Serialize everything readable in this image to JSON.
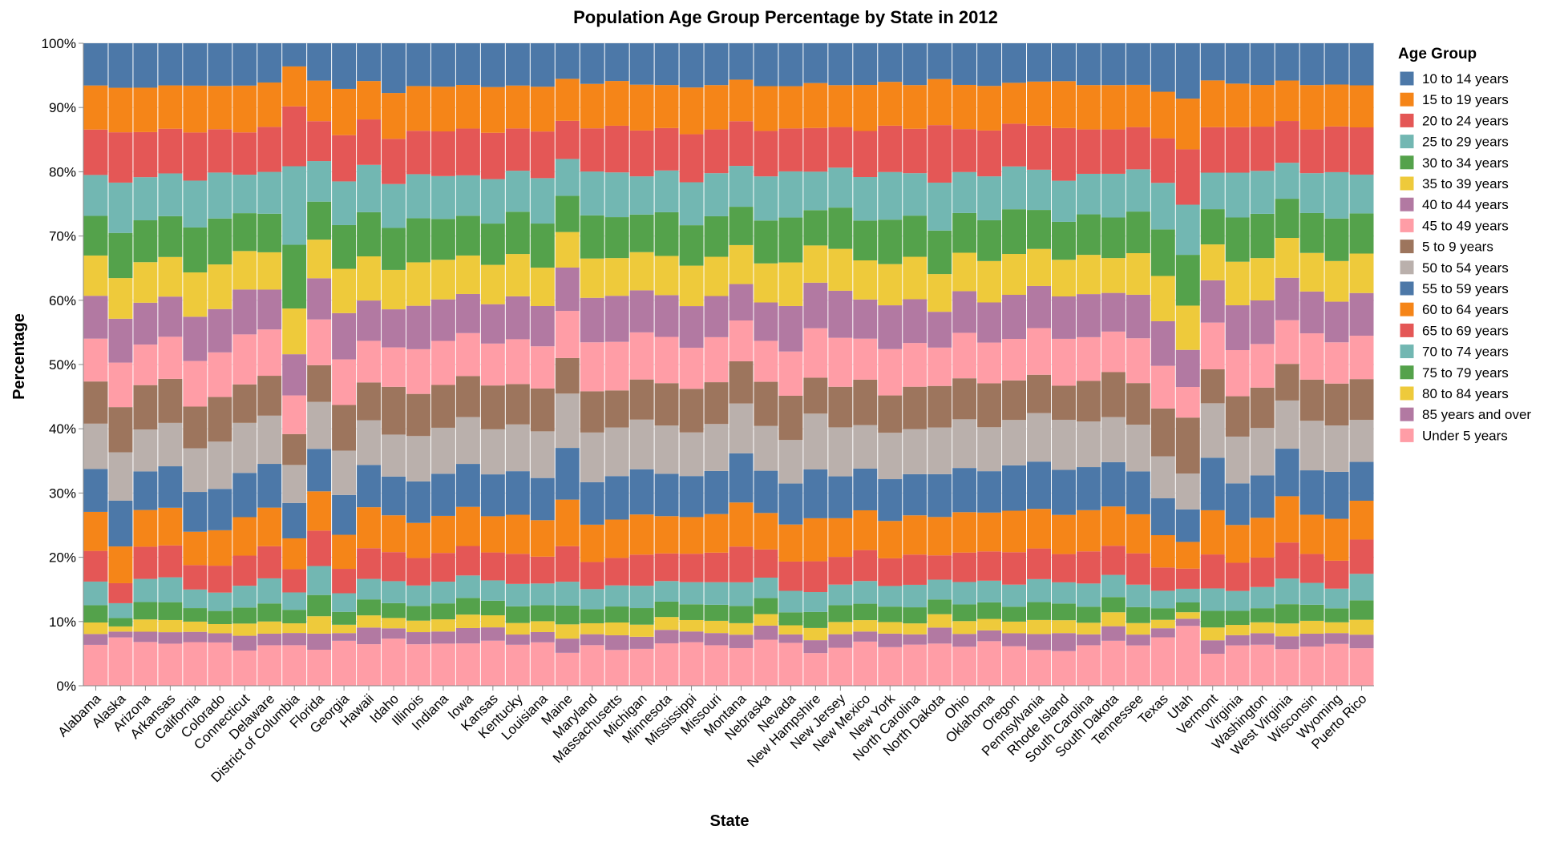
{
  "chart_data": {
    "type": "bar",
    "stacked": "normalize",
    "title": "Population Age Group Percentage by State in 2012",
    "xlabel": "State",
    "ylabel": "Percentage",
    "ylim": [
      0,
      1
    ],
    "y_ticks": [
      "0%",
      "10%",
      "20%",
      "30%",
      "40%",
      "50%",
      "60%",
      "70%",
      "80%",
      "90%",
      "100%"
    ],
    "grid": true,
    "legend": {
      "title": "Age Group",
      "position": "right"
    },
    "categories": [
      "Alabama",
      "Alaska",
      "Arizona",
      "Arkansas",
      "California",
      "Colorado",
      "Connecticut",
      "Delaware",
      "District of Columbia",
      "Florida",
      "Georgia",
      "Hawaii",
      "Idaho",
      "Illinois",
      "Indiana",
      "Iowa",
      "Kansas",
      "Kentucky",
      "Louisiana",
      "Maine",
      "Maryland",
      "Massachusetts",
      "Michigan",
      "Minnesota",
      "Mississippi",
      "Missouri",
      "Montana",
      "Nebraska",
      "Nevada",
      "New Hampshire",
      "New Jersey",
      "New Mexico",
      "New York",
      "North Carolina",
      "North Dakota",
      "Ohio",
      "Oklahoma",
      "Oregon",
      "Pennsylvania",
      "Rhode Island",
      "South Carolina",
      "South Dakota",
      "Tennessee",
      "Texas",
      "Utah",
      "Vermont",
      "Virginia",
      "Washington",
      "West Virginia",
      "Wisconsin",
      "Wyoming",
      "Puerto Rico"
    ],
    "stack_order": [
      "Under 5 years",
      "85 years and over",
      "80 to 84 years",
      "75 to 79 years",
      "70 to 74 years",
      "65 to 69 years",
      "60 to 64 years",
      "55 to 59 years",
      "50 to 54 years",
      "5 to 9 years",
      "45 to 49 years",
      "40 to 44 years",
      "35 to 39 years",
      "30 to 34 years",
      "25 to 29 years",
      "20 to 24 years",
      "15 to 19 years",
      "10 to 14 years"
    ],
    "series": [
      {
        "name": "10 to 14 years",
        "color": "#4c78a8",
        "values": [
          6.6,
          6.9,
          6.9,
          6.6,
          6.6,
          6.5,
          6.6,
          6.1,
          3.6,
          5.8,
          7.1,
          5.9,
          7.7,
          6.7,
          6.8,
          6.5,
          6.9,
          6.6,
          6.8,
          5.5,
          6.3,
          5.9,
          6.5,
          6.5,
          7.0,
          6.5,
          5.7,
          6.7,
          6.6,
          6.2,
          6.5,
          6.6,
          6.0,
          6.5,
          5.6,
          6.5,
          6.7,
          6.1,
          6.0,
          5.9,
          6.5,
          6.6,
          6.5,
          7.5,
          8.5,
          5.8,
          6.3,
          6.5,
          5.8,
          6.5,
          6.5,
          6.5
        ]
      },
      {
        "name": "15 to 19 years",
        "color": "#f58518",
        "values": [
          6.9,
          6.9,
          6.9,
          6.8,
          7.3,
          6.6,
          7.3,
          6.9,
          6.2,
          6.3,
          7.2,
          6.0,
          7.1,
          7.0,
          7.0,
          6.8,
          7.2,
          6.7,
          7.0,
          6.5,
          6.9,
          7.0,
          7.2,
          6.7,
          7.4,
          6.9,
          6.5,
          7.0,
          6.5,
          7.0,
          6.5,
          7.3,
          6.8,
          6.8,
          7.2,
          6.9,
          7.0,
          6.3,
          6.9,
          7.3,
          6.9,
          7.0,
          6.6,
          7.2,
          7.8,
          7.3,
          6.8,
          6.5,
          6.3,
          6.9,
          6.6,
          6.5
        ]
      },
      {
        "name": "20 to 24 years",
        "color": "#e45756",
        "values": [
          7.1,
          7.8,
          7.0,
          7.0,
          7.5,
          6.6,
          6.6,
          7.0,
          9.3,
          6.2,
          7.2,
          7.1,
          7.0,
          6.8,
          7.0,
          7.3,
          7.3,
          6.6,
          7.3,
          5.9,
          6.7,
          7.3,
          7.2,
          6.6,
          7.6,
          6.8,
          7.0,
          7.1,
          6.6,
          6.8,
          6.3,
          7.3,
          7.2,
          6.9,
          9.0,
          6.7,
          7.2,
          6.6,
          6.9,
          8.2,
          6.9,
          7.0,
          6.6,
          6.9,
          8.5,
          7.1,
          7.1,
          6.9,
          6.5,
          6.8,
          7.2,
          7.3
        ]
      },
      {
        "name": "25 to 29 years",
        "color": "#72b7b2",
        "values": [
          6.4,
          7.8,
          6.7,
          6.7,
          7.3,
          7.0,
          6.0,
          6.5,
          12.2,
          6.3,
          6.8,
          7.4,
          6.8,
          6.9,
          6.7,
          6.3,
          7.0,
          6.4,
          7.1,
          5.7,
          6.8,
          7.0,
          6.0,
          6.5,
          6.8,
          6.7,
          6.4,
          6.9,
          7.1,
          6.0,
          6.2,
          6.9,
          7.4,
          6.6,
          7.5,
          6.4,
          6.9,
          6.6,
          6.3,
          6.4,
          6.3,
          6.9,
          6.6,
          7.2,
          7.7,
          5.7,
          7.0,
          6.7,
          5.6,
          6.2,
          7.3,
          6.0
        ]
      },
      {
        "name": "30 to 34 years",
        "color": "#54a24b",
        "values": [
          6.2,
          7.0,
          6.5,
          6.4,
          7.0,
          7.0,
          5.9,
          6.0,
          9.9,
          5.9,
          6.8,
          6.9,
          6.5,
          6.9,
          6.4,
          6.2,
          6.5,
          6.6,
          6.9,
          5.6,
          6.7,
          6.4,
          5.9,
          6.8,
          6.4,
          6.3,
          6.0,
          6.7,
          6.9,
          5.5,
          6.4,
          6.3,
          6.9,
          6.4,
          6.8,
          6.2,
          6.4,
          6.9,
          6.1,
          5.9,
          6.3,
          6.4,
          6.5,
          7.2,
          7.8,
          5.5,
          6.9,
          6.9,
          6.1,
          6.2,
          6.7,
          6.2
        ]
      },
      {
        "name": "35 to 39 years",
        "color": "#eeca3b",
        "values": [
          6.3,
          6.3,
          6.3,
          6.2,
          6.9,
          6.8,
          6.0,
          5.8,
          7.1,
          6.0,
          6.9,
          6.9,
          6.1,
          6.8,
          6.2,
          6.0,
          6.2,
          6.6,
          6.0,
          5.5,
          6.1,
          5.9,
          6.0,
          6.1,
          6.4,
          6.1,
          6.1,
          6.1,
          6.7,
          5.8,
          6.5,
          6.2,
          6.4,
          6.6,
          5.9,
          6.0,
          6.5,
          6.3,
          5.8,
          5.7,
          6.1,
          5.5,
          6.5,
          7.0,
          6.8,
          5.6,
          6.8,
          6.6,
          6.2,
          6.0,
          6.4,
          6.1
        ]
      },
      {
        "name": "40 to 44 years",
        "color": "#b279a2",
        "values": [
          6.7,
          6.8,
          6.5,
          6.3,
          6.9,
          6.6,
          7.0,
          6.2,
          6.4,
          6.4,
          7.2,
          6.3,
          5.9,
          6.8,
          6.5,
          6.1,
          6.2,
          6.7,
          6.3,
          6.7,
          6.9,
          7.2,
          6.6,
          6.5,
          6.6,
          6.4,
          5.7,
          6.0,
          7.0,
          7.1,
          7.3,
          6.2,
          6.8,
          6.8,
          5.6,
          6.5,
          6.3,
          6.8,
          6.6,
          6.6,
          6.7,
          6.1,
          6.8,
          6.9,
          5.7,
          6.6,
          7.0,
          6.8,
          6.6,
          6.5,
          6.4,
          6.6
        ]
      },
      {
        "name": "45 to 49 years",
        "color": "#ff9da6",
        "values": [
          6.7,
          6.9,
          6.3,
          6.6,
          7.1,
          6.8,
          7.8,
          7.2,
          6.0,
          7.1,
          7.1,
          6.5,
          6.1,
          7.0,
          6.9,
          6.7,
          6.6,
          7.0,
          6.6,
          7.3,
          7.6,
          7.6,
          7.4,
          7.2,
          6.5,
          7.0,
          6.4,
          6.4,
          6.8,
          7.7,
          7.6,
          6.5,
          7.2,
          6.8,
          6.0,
          7.1,
          6.4,
          6.4,
          7.3,
          7.3,
          6.8,
          6.4,
          7.0,
          6.6,
          4.7,
          7.3,
          7.2,
          6.8,
          6.8,
          7.2,
          6.5,
          6.7
        ]
      },
      {
        "name": "5 to 9 years",
        "color": "#9d755d",
        "values": [
          6.6,
          7.0,
          6.9,
          6.9,
          6.5,
          6.8,
          6.0,
          6.2,
          4.8,
          5.7,
          7.1,
          5.9,
          7.4,
          6.6,
          6.7,
          6.4,
          6.9,
          6.3,
          6.7,
          5.5,
          6.4,
          5.8,
          6.3,
          6.6,
          6.9,
          6.5,
          6.6,
          6.9,
          6.8,
          5.6,
          6.3,
          7.2,
          5.8,
          6.6,
          6.5,
          6.4,
          6.9,
          6.1,
          6.0,
          5.3,
          6.3,
          7.1,
          6.5,
          7.4,
          8.6,
          5.3,
          6.3,
          6.3,
          5.7,
          6.4,
          6.6,
          6.3
        ]
      },
      {
        "name": "50 to 54 years",
        "color": "#bab0ac",
        "values": [
          7.1,
          7.5,
          6.5,
          6.8,
          6.8,
          7.2,
          7.8,
          7.5,
          5.9,
          7.3,
          6.9,
          7.0,
          6.5,
          7.1,
          7.2,
          7.3,
          7.1,
          7.3,
          7.3,
          8.4,
          7.7,
          7.6,
          7.8,
          7.5,
          6.9,
          7.3,
          7.8,
          7.0,
          6.7,
          8.7,
          7.6,
          6.9,
          7.2,
          7.0,
          7.3,
          7.6,
          6.9,
          7.0,
          7.6,
          7.8,
          7.1,
          7.1,
          7.3,
          6.5,
          5.5,
          8.5,
          7.3,
          7.4,
          7.5,
          7.7,
          7.3,
          6.5
        ]
      },
      {
        "name": "55 to 59 years",
        "color": "#4c78a8",
        "values": [
          6.7,
          7.1,
          6.0,
          6.5,
          6.2,
          6.3,
          6.9,
          6.8,
          5.5,
          6.6,
          6.2,
          6.6,
          6.0,
          6.5,
          6.6,
          6.7,
          6.6,
          6.8,
          6.6,
          8.0,
          6.6,
          6.8,
          7.1,
          6.6,
          6.5,
          6.7,
          7.7,
          6.6,
          6.3,
          7.6,
          6.5,
          6.6,
          6.5,
          6.4,
          6.7,
          6.9,
          6.5,
          7.0,
          7.4,
          7.0,
          6.7,
          7.0,
          6.7,
          5.7,
          5.0,
          8.2,
          6.5,
          6.6,
          7.4,
          6.9,
          7.4,
          6.0
        ]
      },
      {
        "name": "60 to 64 years",
        "color": "#f58518",
        "values": [
          6.1,
          5.7,
          5.7,
          5.9,
          5.2,
          5.4,
          6.0,
          6.0,
          4.8,
          6.1,
          5.3,
          6.4,
          5.7,
          5.5,
          5.8,
          6.1,
          5.7,
          6.1,
          5.7,
          7.2,
          5.8,
          6.0,
          6.3,
          5.8,
          5.8,
          6.0,
          6.9,
          5.7,
          5.7,
          6.7,
          6.0,
          6.3,
          5.8,
          6.1,
          6.0,
          6.3,
          6.1,
          6.4,
          6.2,
          6.1,
          6.4,
          6.2,
          6.1,
          5.0,
          4.1,
          6.9,
          5.9,
          6.2,
          7.2,
          6.1,
          6.6,
          6.0
        ]
      },
      {
        "name": "65 to 69 years",
        "color": "#e45756",
        "values": [
          4.8,
          3.1,
          5.0,
          5.0,
          3.8,
          4.1,
          4.7,
          5.0,
          3.6,
          5.5,
          3.8,
          4.8,
          4.5,
          4.3,
          4.5,
          4.6,
          4.4,
          4.7,
          4.2,
          5.5,
          4.2,
          4.3,
          4.9,
          4.3,
          4.5,
          4.6,
          5.6,
          4.4,
          4.5,
          4.8,
          4.3,
          4.9,
          4.3,
          4.7,
          3.8,
          4.6,
          4.6,
          5.0,
          4.8,
          4.4,
          5.0,
          4.6,
          4.9,
          3.6,
          3.1,
          5.3,
          4.4,
          4.6,
          5.6,
          4.5,
          4.4,
          5.3
        ]
      },
      {
        "name": "70 to 74 years",
        "color": "#72b7b2",
        "values": [
          3.7,
          2.3,
          3.6,
          3.9,
          2.9,
          2.8,
          3.4,
          3.9,
          2.7,
          4.5,
          2.9,
          3.2,
          3.4,
          3.2,
          3.4,
          3.5,
          3.2,
          3.5,
          3.4,
          3.7,
          3.1,
          3.3,
          3.5,
          3.2,
          3.5,
          3.5,
          3.7,
          3.2,
          3.3,
          3.1,
          3.2,
          3.6,
          3.2,
          3.5,
          3.1,
          3.5,
          3.4,
          3.4,
          3.6,
          3.3,
          3.6,
          3.5,
          3.5,
          2.7,
          2.1,
          3.5,
          3.1,
          3.3,
          4.0,
          3.4,
          3.1,
          4.1
        ]
      },
      {
        "name": "75 to 79 years",
        "color": "#54a24b",
        "values": [
          2.7,
          1.3,
          2.7,
          2.8,
          2.1,
          2.0,
          2.5,
          2.8,
          2.1,
          3.3,
          2.0,
          2.5,
          2.3,
          2.3,
          2.5,
          2.6,
          2.3,
          2.6,
          2.5,
          2.9,
          2.2,
          2.5,
          2.6,
          2.4,
          2.5,
          2.5,
          2.7,
          2.5,
          2.0,
          2.5,
          2.6,
          2.6,
          2.4,
          2.5,
          2.3,
          2.6,
          2.6,
          2.3,
          2.8,
          2.6,
          2.5,
          2.4,
          2.5,
          1.8,
          1.5,
          2.6,
          2.2,
          2.2,
          3.0,
          2.5,
          2.2,
          3.0
        ]
      },
      {
        "name": "80 to 84 years",
        "color": "#eeca3b",
        "values": [
          1.8,
          0.8,
          1.9,
          1.9,
          1.6,
          1.4,
          1.9,
          1.9,
          1.5,
          2.7,
          1.3,
          1.9,
          1.6,
          1.8,
          1.9,
          2.1,
          1.9,
          1.8,
          1.7,
          2.2,
          1.7,
          2.0,
          1.9,
          2.0,
          1.8,
          1.9,
          1.8,
          1.8,
          1.4,
          1.9,
          1.9,
          1.8,
          1.8,
          1.7,
          2.1,
          2.0,
          1.8,
          1.8,
          2.2,
          2.0,
          1.8,
          2.2,
          1.8,
          1.3,
          1.0,
          2.0,
          1.6,
          1.7,
          2.0,
          2.0,
          1.7,
          2.3
        ]
      },
      {
        "name": "85 years and over",
        "color": "#b279a2",
        "values": [
          1.7,
          0.9,
          1.6,
          1.8,
          1.6,
          1.4,
          2.3,
          1.8,
          1.9,
          2.5,
          1.2,
          2.6,
          1.6,
          1.9,
          1.9,
          2.4,
          2.1,
          1.6,
          1.6,
          2.2,
          1.7,
          2.3,
          1.9,
          2.1,
          1.7,
          1.9,
          2.1,
          2.2,
          1.3,
          2.0,
          2.1,
          1.6,
          2.1,
          1.6,
          2.5,
          2.0,
          1.7,
          2.0,
          2.5,
          2.8,
          1.7,
          2.3,
          1.7,
          1.4,
          1.1,
          2.1,
          1.6,
          1.8,
          2.0,
          2.0,
          1.7,
          2.1
        ]
      },
      {
        "name": "Under 5 years",
        "color": "#ff9da6",
        "values": [
          6.4,
          7.5,
          6.8,
          6.6,
          6.8,
          6.6,
          5.5,
          6.3,
          6.3,
          5.6,
          7.0,
          6.5,
          7.3,
          6.5,
          6.6,
          6.6,
          7.1,
          6.4,
          6.8,
          5.1,
          6.3,
          5.6,
          5.8,
          6.6,
          6.9,
          6.3,
          5.9,
          7.2,
          6.6,
          5.1,
          5.9,
          7.0,
          6.0,
          6.4,
          6.6,
          6.1,
          7.0,
          6.1,
          5.6,
          5.4,
          6.3,
          7.1,
          6.3,
          7.5,
          9.2,
          5.0,
          6.3,
          6.4,
          5.7,
          6.1,
          6.6,
          5.8
        ]
      }
    ]
  }
}
